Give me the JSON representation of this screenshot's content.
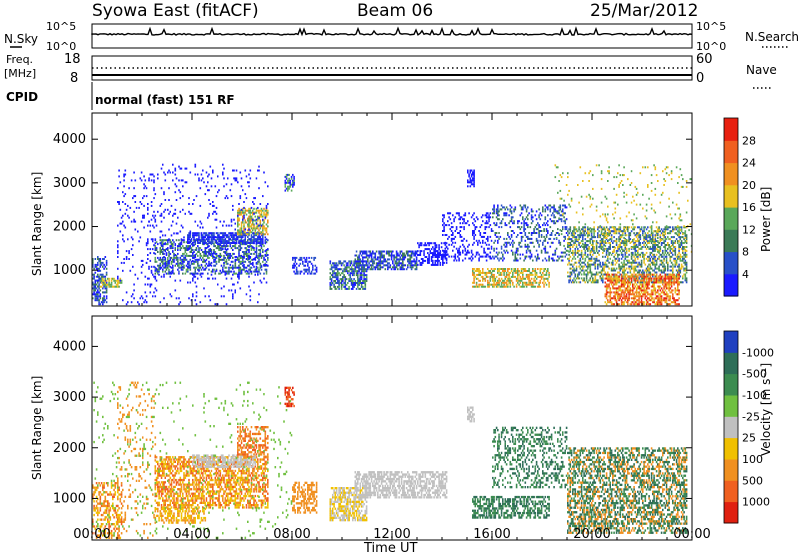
{
  "header": {
    "station": "Syowa East (fitACF)",
    "beam": "Beam 06",
    "date": "25/Mar/2012"
  },
  "top_panels": {
    "nsky_label": "N.Sky",
    "nsearch_label": "N.Search",
    "noise_ticks_left": [
      "10^5",
      "10^0"
    ],
    "noise_ticks_right": [
      "10^5",
      "10^0"
    ],
    "freq_label_1": "Freq.",
    "freq_label_2": "[MHz]",
    "freq_ticks": [
      "18",
      "8"
    ],
    "nave_label": "Nave",
    "nave_ticks": [
      "60",
      "0"
    ],
    "cpid_label": "CPID",
    "cpid_text": "normal (fast) 151 RF"
  },
  "x_axis": {
    "label": "Time UT",
    "ticks": [
      "00:00",
      "04:00",
      "08:00",
      "12:00",
      "16:00",
      "20:00",
      "00:00"
    ]
  },
  "chart_data": [
    {
      "type": "heatmap",
      "panel": "power",
      "ylabel": "Slant Range [km]",
      "yticks": [
        1000,
        2000,
        3000,
        4000
      ],
      "ylim": [
        180,
        4600
      ],
      "xlim_hours": [
        0,
        24
      ],
      "colorbar": {
        "label": "Power [dB]",
        "tick_labels": [
          "4",
          "8",
          "12",
          "16",
          "20",
          "24",
          "28"
        ],
        "colors": [
          "#1a1aff",
          "#2850c8",
          "#3b7a57",
          "#5aa85a",
          "#e8c020",
          "#f09020",
          "#f06020",
          "#e82010"
        ]
      },
      "blobs": [
        {
          "t0": 0.0,
          "t1": 0.6,
          "r0": 200,
          "r1": 1300,
          "c": [
            0,
            1,
            2
          ],
          "d": 0.5
        },
        {
          "t0": 0.3,
          "t1": 1.2,
          "r0": 600,
          "r1": 800,
          "c": [
            3,
            4
          ],
          "d": 0.6
        },
        {
          "t0": 1.0,
          "t1": 2.5,
          "r0": 200,
          "r1": 3300,
          "c": [
            0
          ],
          "d": 0.08
        },
        {
          "t0": 2.5,
          "t1": 7.0,
          "r0": 900,
          "r1": 1700,
          "c": [
            0,
            1,
            2,
            3
          ],
          "d": 0.45
        },
        {
          "t0": 3.8,
          "t1": 6.8,
          "r0": 1600,
          "r1": 1850,
          "c": [
            0,
            1
          ],
          "d": 0.7
        },
        {
          "t0": 5.8,
          "t1": 7.0,
          "r0": 1800,
          "r1": 2400,
          "c": [
            3,
            4,
            5
          ],
          "d": 0.55
        },
        {
          "t0": 2.0,
          "t1": 7.0,
          "r0": 200,
          "r1": 3400,
          "c": [
            0
          ],
          "d": 0.06
        },
        {
          "t0": 7.7,
          "t1": 8.1,
          "r0": 2800,
          "r1": 3200,
          "c": [
            0,
            3
          ],
          "d": 0.6
        },
        {
          "t0": 8.0,
          "t1": 9.0,
          "r0": 900,
          "r1": 1300,
          "c": [
            0,
            1
          ],
          "d": 0.4
        },
        {
          "t0": 9.5,
          "t1": 11.0,
          "r0": 550,
          "r1": 1200,
          "c": [
            0,
            1,
            2,
            3
          ],
          "d": 0.6
        },
        {
          "t0": 10.5,
          "t1": 13.0,
          "r0": 1000,
          "r1": 1450,
          "c": [
            0,
            1,
            2
          ],
          "d": 0.6
        },
        {
          "t0": 13.0,
          "t1": 14.2,
          "r0": 1100,
          "r1": 1600,
          "c": [
            0
          ],
          "d": 0.45
        },
        {
          "t0": 14.0,
          "t1": 16.0,
          "r0": 1200,
          "r1": 2300,
          "c": [
            0
          ],
          "d": 0.25
        },
        {
          "t0": 15.0,
          "t1": 15.3,
          "r0": 2900,
          "r1": 3300,
          "c": [
            0
          ],
          "d": 0.6
        },
        {
          "t0": 15.2,
          "t1": 18.3,
          "r0": 600,
          "r1": 1050,
          "c": [
            3,
            4,
            5
          ],
          "d": 0.55
        },
        {
          "t0": 16.0,
          "t1": 19.0,
          "r0": 1200,
          "r1": 2500,
          "c": [
            0,
            1,
            2
          ],
          "d": 0.25
        },
        {
          "t0": 19.0,
          "t1": 23.8,
          "r0": 700,
          "r1": 2000,
          "c": [
            1,
            2,
            3,
            4
          ],
          "d": 0.5
        },
        {
          "t0": 20.5,
          "t1": 23.5,
          "r0": 200,
          "r1": 900,
          "c": [
            4,
            5,
            6,
            7
          ],
          "d": 0.6
        },
        {
          "t0": 18.5,
          "t1": 24.0,
          "r0": 1400,
          "r1": 3400,
          "c": [
            3,
            4
          ],
          "d": 0.05
        }
      ]
    },
    {
      "type": "heatmap",
      "panel": "velocity",
      "ylabel": "Slant Range [km]",
      "yticks": [
        1000,
        2000,
        3000,
        4000
      ],
      "ylim": [
        180,
        4600
      ],
      "xlim_hours": [
        0,
        24
      ],
      "colorbar": {
        "label": "Velocity [m s⁻¹]",
        "tick_labels": [
          "1000",
          "500",
          "100",
          "25",
          "-25",
          "-100",
          "-500",
          "-1000"
        ],
        "colors": [
          "#2040c0",
          "#2e6e58",
          "#3c8c50",
          "#70c040",
          "#c0c0c0",
          "#f0c000",
          "#f09020",
          "#f06020",
          "#e02010"
        ]
      },
      "blobs": [
        {
          "t0": 0.0,
          "t1": 1.2,
          "r0": 200,
          "r1": 1300,
          "c": [
            5,
            6,
            7
          ],
          "d": 0.4
        },
        {
          "t0": 1.0,
          "t1": 2.5,
          "r0": 200,
          "r1": 3300,
          "c": [
            6
          ],
          "d": 0.08
        },
        {
          "t0": 2.5,
          "t1": 7.0,
          "r0": 800,
          "r1": 1800,
          "c": [
            5,
            6,
            7
          ],
          "d": 0.55
        },
        {
          "t0": 4.0,
          "t1": 6.5,
          "r0": 1600,
          "r1": 1850,
          "c": [
            4
          ],
          "d": 0.6
        },
        {
          "t0": 2.5,
          "t1": 4.5,
          "r0": 500,
          "r1": 800,
          "c": [
            5,
            6
          ],
          "d": 0.5
        },
        {
          "t0": 5.8,
          "t1": 7.0,
          "r0": 1800,
          "r1": 2400,
          "c": [
            6,
            7
          ],
          "d": 0.5
        },
        {
          "t0": 7.7,
          "t1": 8.1,
          "r0": 2800,
          "r1": 3200,
          "c": [
            7,
            8
          ],
          "d": 0.6
        },
        {
          "t0": 8.0,
          "t1": 9.0,
          "r0": 700,
          "r1": 1300,
          "c": [
            6
          ],
          "d": 0.5
        },
        {
          "t0": 9.5,
          "t1": 11.0,
          "r0": 550,
          "r1": 1200,
          "c": [
            4,
            5
          ],
          "d": 0.6
        },
        {
          "t0": 10.5,
          "t1": 14.2,
          "r0": 1000,
          "r1": 1500,
          "c": [
            4
          ],
          "d": 0.6
        },
        {
          "t0": 15.0,
          "t1": 15.3,
          "r0": 2500,
          "r1": 2800,
          "c": [
            4
          ],
          "d": 0.6
        },
        {
          "t0": 15.2,
          "t1": 18.3,
          "r0": 600,
          "r1": 1050,
          "c": [
            1,
            2
          ],
          "d": 0.55
        },
        {
          "t0": 16.0,
          "t1": 19.0,
          "r0": 1200,
          "r1": 2400,
          "c": [
            1,
            2
          ],
          "d": 0.3
        },
        {
          "t0": 19.0,
          "t1": 23.8,
          "r0": 300,
          "r1": 2000,
          "c": [
            1,
            2,
            6
          ],
          "d": 0.5
        },
        {
          "t0": 0.0,
          "t1": 8.0,
          "r0": 200,
          "r1": 3300,
          "c": [
            3
          ],
          "d": 0.03
        }
      ]
    }
  ]
}
